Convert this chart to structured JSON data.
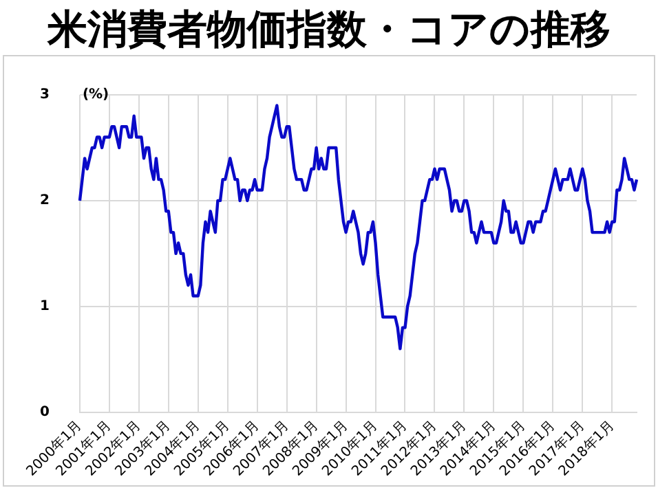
{
  "chart_data": {
    "type": "line",
    "title": "米消費者物価指数・コアの推移",
    "ylabel": "(%)",
    "categories": [
      "2000年1月",
      null,
      null,
      null,
      null,
      null,
      null,
      null,
      null,
      null,
      null,
      null,
      "2001年1月",
      null,
      null,
      null,
      null,
      null,
      null,
      null,
      null,
      null,
      null,
      null,
      "2002年1月",
      null,
      null,
      null,
      null,
      null,
      null,
      null,
      null,
      null,
      null,
      null,
      "2003年1月",
      null,
      null,
      null,
      null,
      null,
      null,
      null,
      null,
      null,
      null,
      null,
      "2004年1月",
      null,
      null,
      null,
      null,
      null,
      null,
      null,
      null,
      null,
      null,
      null,
      "2005年1月",
      null,
      null,
      null,
      null,
      null,
      null,
      null,
      null,
      null,
      null,
      null,
      "2006年1月",
      null,
      null,
      null,
      null,
      null,
      null,
      null,
      null,
      null,
      null,
      null,
      "2007年1月",
      null,
      null,
      null,
      null,
      null,
      null,
      null,
      null,
      null,
      null,
      null,
      "2008年1月",
      null,
      null,
      null,
      null,
      null,
      null,
      null,
      null,
      null,
      null,
      null,
      "2009年1月",
      null,
      null,
      null,
      null,
      null,
      null,
      null,
      null,
      null,
      null,
      null,
      "2010年1月",
      null,
      null,
      null,
      null,
      null,
      null,
      null,
      null,
      null,
      null,
      null,
      "2011年1月",
      null,
      null,
      null,
      null,
      null,
      null,
      null,
      null,
      null,
      null,
      null,
      "2012年1月",
      null,
      null,
      null,
      null,
      null,
      null,
      null,
      null,
      null,
      null,
      null,
      "2013年1月",
      null,
      null,
      null,
      null,
      null,
      null,
      null,
      null,
      null,
      null,
      null,
      "2014年1月",
      null,
      null,
      null,
      null,
      null,
      null,
      null,
      null,
      null,
      null,
      null,
      "2015年1月",
      null,
      null,
      null,
      null,
      null,
      null,
      null,
      null,
      null,
      null,
      null,
      "2016年1月",
      null,
      null,
      null,
      null,
      null,
      null,
      null,
      null,
      null,
      null,
      null,
      "2017年1月",
      null,
      null,
      null,
      null,
      null,
      null,
      null,
      null,
      null,
      null,
      null,
      "2018年1月",
      null,
      null,
      null,
      null,
      null,
      null,
      null,
      null,
      null,
      null
    ],
    "series": [
      {
        "color": "#0a0ac8",
        "values": [
          2.0,
          2.2,
          2.4,
          2.3,
          2.4,
          2.5,
          2.5,
          2.6,
          2.6,
          2.5,
          2.6,
          2.6,
          2.6,
          2.7,
          2.7,
          2.6,
          2.5,
          2.7,
          2.7,
          2.7,
          2.6,
          2.6,
          2.8,
          2.6,
          2.6,
          2.6,
          2.4,
          2.5,
          2.5,
          2.3,
          2.2,
          2.4,
          2.2,
          2.2,
          2.1,
          1.9,
          1.9,
          1.7,
          1.7,
          1.5,
          1.6,
          1.5,
          1.5,
          1.3,
          1.2,
          1.3,
          1.1,
          1.1,
          1.1,
          1.2,
          1.6,
          1.8,
          1.7,
          1.9,
          1.8,
          1.7,
          2.0,
          2.0,
          2.2,
          2.2,
          2.3,
          2.4,
          2.3,
          2.2,
          2.2,
          2.0,
          2.1,
          2.1,
          2.0,
          2.1,
          2.1,
          2.2,
          2.1,
          2.1,
          2.1,
          2.3,
          2.4,
          2.6,
          2.7,
          2.8,
          2.9,
          2.7,
          2.6,
          2.6,
          2.7,
          2.7,
          2.5,
          2.3,
          2.2,
          2.2,
          2.2,
          2.1,
          2.1,
          2.2,
          2.3,
          2.3,
          2.5,
          2.3,
          2.4,
          2.3,
          2.3,
          2.5,
          2.5,
          2.5,
          2.5,
          2.2,
          2.0,
          1.8,
          1.7,
          1.8,
          1.8,
          1.9,
          1.8,
          1.7,
          1.5,
          1.4,
          1.5,
          1.7,
          1.7,
          1.8,
          1.6,
          1.3,
          1.1,
          0.9,
          0.9,
          0.9,
          0.9,
          0.9,
          0.9,
          0.8,
          0.6,
          0.8,
          0.8,
          1.0,
          1.1,
          1.3,
          1.5,
          1.6,
          1.8,
          2.0,
          2.0,
          2.1,
          2.2,
          2.2,
          2.3,
          2.2,
          2.3,
          2.3,
          2.3,
          2.2,
          2.1,
          1.9,
          2.0,
          2.0,
          1.9,
          1.9,
          2.0,
          2.0,
          1.9,
          1.7,
          1.7,
          1.6,
          1.7,
          1.8,
          1.7,
          1.7,
          1.7,
          1.7,
          1.6,
          1.6,
          1.7,
          1.8,
          2.0,
          1.9,
          1.9,
          1.7,
          1.7,
          1.8,
          1.7,
          1.6,
          1.6,
          1.7,
          1.8,
          1.8,
          1.7,
          1.8,
          1.8,
          1.8,
          1.9,
          1.9,
          2.0,
          2.1,
          2.2,
          2.3,
          2.2,
          2.1,
          2.2,
          2.2,
          2.2,
          2.3,
          2.2,
          2.1,
          2.1,
          2.2,
          2.3,
          2.2,
          2.0,
          1.9,
          1.7,
          1.7,
          1.7,
          1.7,
          1.7,
          1.7,
          1.8,
          1.7,
          1.8,
          1.8,
          2.1,
          2.1,
          2.2,
          2.4,
          2.3,
          2.2,
          2.2,
          2.1,
          2.2
        ]
      }
    ],
    "ylim": [
      0,
      3
    ],
    "yticks": [
      0,
      1,
      2,
      3
    ],
    "grid": true,
    "marker": "none",
    "line_style": "solid"
  }
}
